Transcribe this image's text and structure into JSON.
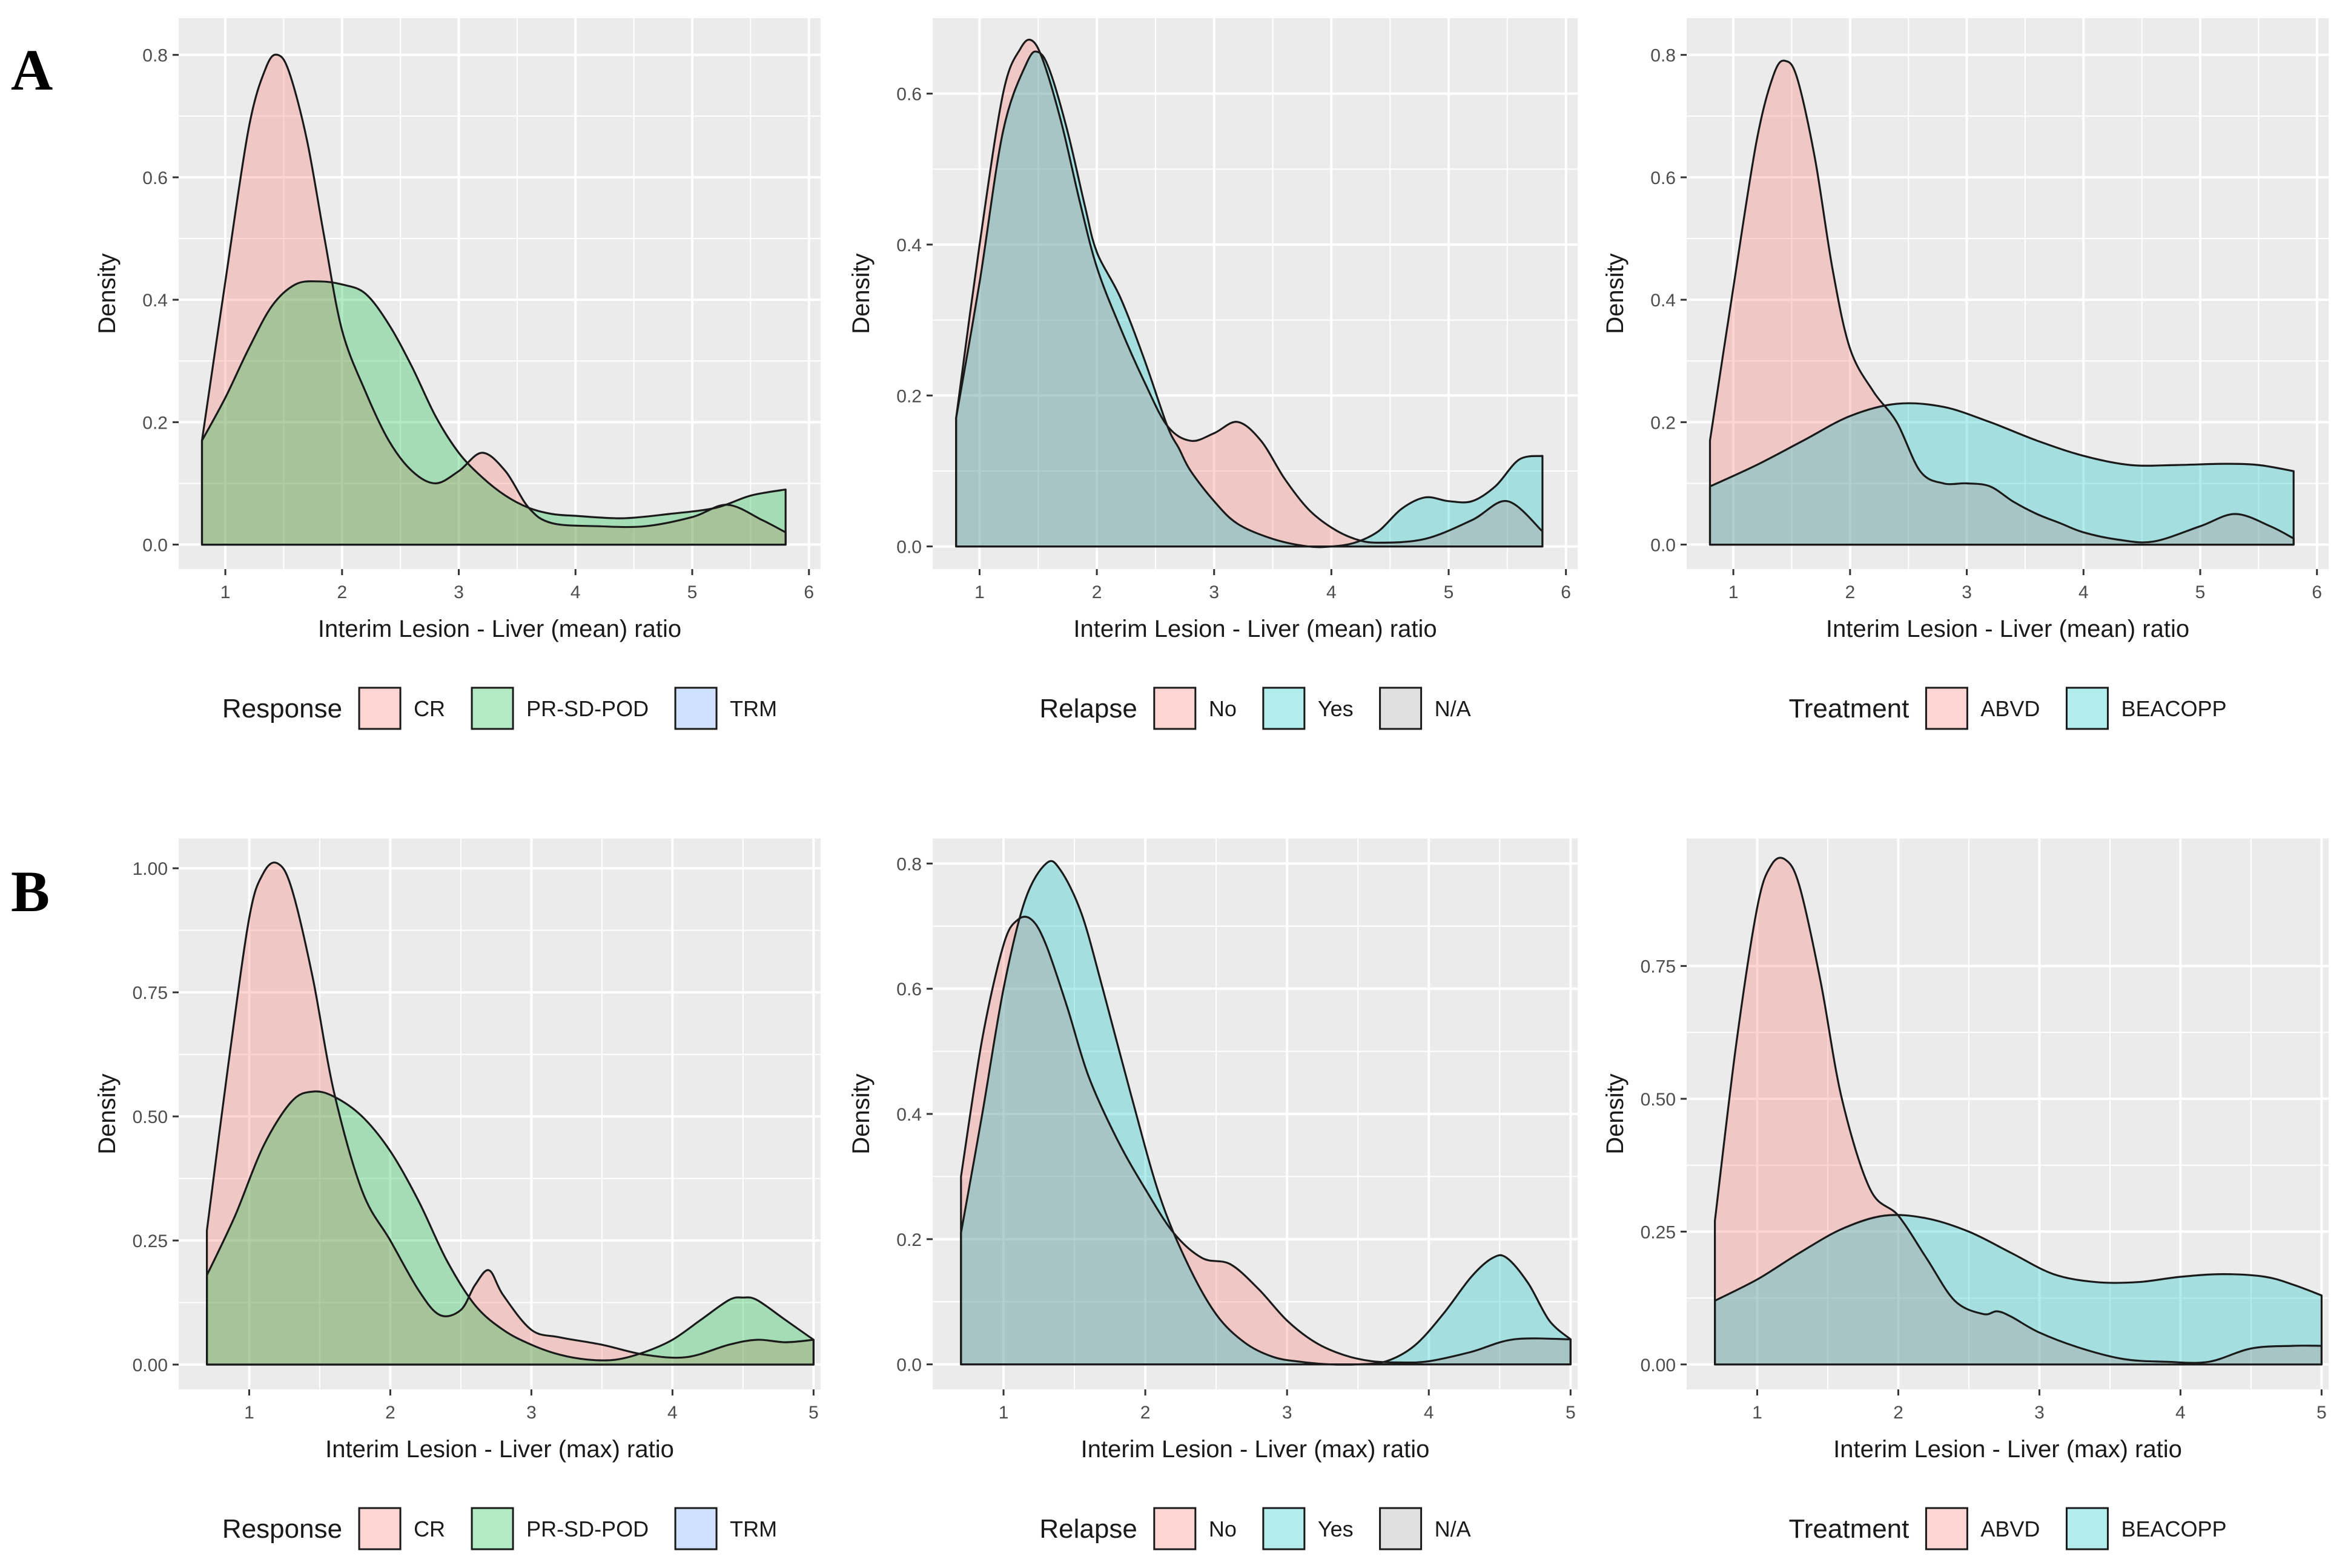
{
  "panel_labels": [
    "A",
    "B"
  ],
  "chart_data": [
    {
      "id": "A-response",
      "row": 0,
      "col": 0,
      "type": "area",
      "xlabel": "Interim Lesion - Liver (mean) ratio",
      "ylabel": "Density",
      "xlim": [
        0.6,
        6.1
      ],
      "ylim": [
        -0.04,
        0.86
      ],
      "xticks": [
        1,
        2,
        3,
        4,
        5,
        6
      ],
      "xtick_labels": [
        "1",
        "2",
        "3",
        "4",
        "5",
        "6"
      ],
      "yticks": [
        0.0,
        0.2,
        0.4,
        0.6,
        0.8
      ],
      "ytick_labels": [
        "0.0",
        "0.2",
        "0.4",
        "0.6",
        "0.8"
      ],
      "legend": {
        "title": "Response",
        "entries": [
          {
            "label": "CR",
            "color": "#F8766D"
          },
          {
            "label": "PR-SD-POD",
            "color": "#00BA38"
          },
          {
            "label": "TRM",
            "color": "#619CFF"
          }
        ]
      },
      "series": [
        {
          "name": "CR",
          "color": "#F8766D",
          "x": [
            0.8,
            1.0,
            1.2,
            1.35,
            1.45,
            1.55,
            1.7,
            1.85,
            2.0,
            2.2,
            2.4,
            2.6,
            2.8,
            3.0,
            3.2,
            3.4,
            3.6,
            3.8,
            4.2,
            4.6,
            5.0,
            5.3,
            5.6,
            5.8
          ],
          "y": [
            0.17,
            0.43,
            0.68,
            0.78,
            0.8,
            0.77,
            0.66,
            0.5,
            0.35,
            0.25,
            0.17,
            0.12,
            0.1,
            0.12,
            0.15,
            0.12,
            0.06,
            0.035,
            0.03,
            0.03,
            0.045,
            0.065,
            0.04,
            0.02
          ]
        },
        {
          "name": "PR-SD-POD",
          "color": "#00BA38",
          "x": [
            0.8,
            1.0,
            1.2,
            1.4,
            1.6,
            1.8,
            2.0,
            2.2,
            2.4,
            2.6,
            2.8,
            3.0,
            3.2,
            3.4,
            3.6,
            3.8,
            4.0,
            4.4,
            4.8,
            5.2,
            5.5,
            5.8
          ],
          "y": [
            0.17,
            0.24,
            0.32,
            0.39,
            0.425,
            0.43,
            0.425,
            0.41,
            0.36,
            0.29,
            0.21,
            0.15,
            0.11,
            0.08,
            0.06,
            0.05,
            0.047,
            0.043,
            0.05,
            0.06,
            0.08,
            0.09
          ]
        }
      ]
    },
    {
      "id": "A-relapse",
      "row": 0,
      "col": 1,
      "type": "area",
      "xlabel": "Interim Lesion - Liver (mean) ratio",
      "ylabel": "Density",
      "xlim": [
        0.6,
        6.1
      ],
      "ylim": [
        -0.03,
        0.7
      ],
      "xticks": [
        1,
        2,
        3,
        4,
        5,
        6
      ],
      "xtick_labels": [
        "1",
        "2",
        "3",
        "4",
        "5",
        "6"
      ],
      "yticks": [
        0.0,
        0.2,
        0.4,
        0.6
      ],
      "ytick_labels": [
        "0.0",
        "0.2",
        "0.4",
        "0.6"
      ],
      "legend": {
        "title": "Relapse",
        "entries": [
          {
            "label": "No",
            "color": "#F8766D"
          },
          {
            "label": "Yes",
            "color": "#00BFC4"
          },
          {
            "label": "N/A",
            "color": "#999999"
          }
        ]
      },
      "series": [
        {
          "name": "No",
          "color": "#F8766D",
          "x": [
            0.8,
            1.0,
            1.2,
            1.35,
            1.45,
            1.55,
            1.7,
            1.85,
            2.0,
            2.2,
            2.4,
            2.6,
            2.8,
            3.0,
            3.2,
            3.4,
            3.6,
            3.8,
            4.0,
            4.2,
            4.4,
            4.8,
            5.2,
            5.5,
            5.8
          ],
          "y": [
            0.17,
            0.4,
            0.6,
            0.66,
            0.67,
            0.64,
            0.56,
            0.46,
            0.37,
            0.29,
            0.22,
            0.16,
            0.14,
            0.15,
            0.165,
            0.14,
            0.09,
            0.05,
            0.025,
            0.01,
            0.005,
            0.01,
            0.035,
            0.06,
            0.02
          ]
        },
        {
          "name": "Yes",
          "color": "#00BFC4",
          "x": [
            0.8,
            1.0,
            1.2,
            1.4,
            1.5,
            1.6,
            1.75,
            1.9,
            2.0,
            2.2,
            2.4,
            2.6,
            2.7,
            2.8,
            3.0,
            3.2,
            3.5,
            3.8,
            4.0,
            4.2,
            4.4,
            4.6,
            4.8,
            5.0,
            5.2,
            5.4,
            5.6,
            5.8
          ],
          "y": [
            0.17,
            0.35,
            0.55,
            0.64,
            0.655,
            0.63,
            0.55,
            0.45,
            0.39,
            0.33,
            0.25,
            0.16,
            0.13,
            0.1,
            0.06,
            0.03,
            0.01,
            0.0,
            0.0,
            0.005,
            0.02,
            0.05,
            0.065,
            0.06,
            0.06,
            0.08,
            0.115,
            0.12
          ]
        }
      ]
    },
    {
      "id": "A-treatment",
      "row": 0,
      "col": 2,
      "type": "area",
      "xlabel": "Interim Lesion - Liver (mean) ratio",
      "ylabel": "Density",
      "xlim": [
        0.6,
        6.1
      ],
      "ylim": [
        -0.04,
        0.86
      ],
      "xticks": [
        1,
        2,
        3,
        4,
        5,
        6
      ],
      "xtick_labels": [
        "1",
        "2",
        "3",
        "4",
        "5",
        "6"
      ],
      "yticks": [
        0.0,
        0.2,
        0.4,
        0.6,
        0.8
      ],
      "ytick_labels": [
        "0.0",
        "0.2",
        "0.4",
        "0.6",
        "0.8"
      ],
      "legend": {
        "title": "Treatment",
        "entries": [
          {
            "label": "ABVD",
            "color": "#F8766D"
          },
          {
            "label": "BEACOPP",
            "color": "#00BFC4"
          }
        ]
      },
      "series": [
        {
          "name": "ABVD",
          "color": "#F8766D",
          "x": [
            0.8,
            1.0,
            1.2,
            1.35,
            1.45,
            1.55,
            1.7,
            1.85,
            2.0,
            2.2,
            2.4,
            2.6,
            2.8,
            3.0,
            3.2,
            3.4,
            3.6,
            3.8,
            4.0,
            4.3,
            4.6,
            5.0,
            5.3,
            5.6,
            5.8
          ],
          "y": [
            0.17,
            0.42,
            0.66,
            0.77,
            0.79,
            0.76,
            0.63,
            0.45,
            0.32,
            0.25,
            0.2,
            0.12,
            0.1,
            0.1,
            0.095,
            0.07,
            0.05,
            0.035,
            0.02,
            0.008,
            0.005,
            0.03,
            0.05,
            0.03,
            0.01
          ]
        },
        {
          "name": "BEACOPP",
          "color": "#00BFC4",
          "x": [
            0.8,
            1.2,
            1.6,
            2.0,
            2.4,
            2.8,
            3.2,
            3.6,
            4.0,
            4.4,
            4.8,
            5.2,
            5.5,
            5.8
          ],
          "y": [
            0.095,
            0.13,
            0.17,
            0.21,
            0.23,
            0.225,
            0.2,
            0.17,
            0.145,
            0.13,
            0.13,
            0.132,
            0.13,
            0.12
          ]
        }
      ]
    },
    {
      "id": "B-response",
      "row": 1,
      "col": 0,
      "type": "area",
      "xlabel": "Interim Lesion - Liver (max) ratio",
      "ylabel": "Density",
      "xlim": [
        0.5,
        5.05
      ],
      "ylim": [
        -0.05,
        1.06
      ],
      "xticks": [
        1,
        2,
        3,
        4,
        5
      ],
      "xtick_labels": [
        "1",
        "2",
        "3",
        "4",
        "5"
      ],
      "yticks": [
        0.0,
        0.25,
        0.5,
        0.75,
        1.0
      ],
      "ytick_labels": [
        "0.00",
        "0.25",
        "0.50",
        "0.75",
        "1.00"
      ],
      "legend": {
        "title": "Response",
        "entries": [
          {
            "label": "CR",
            "color": "#F8766D"
          },
          {
            "label": "PR-SD-POD",
            "color": "#00BA38"
          },
          {
            "label": "TRM",
            "color": "#619CFF"
          }
        ]
      },
      "series": [
        {
          "name": "CR",
          "color": "#F8766D",
          "x": [
            0.7,
            0.85,
            1.0,
            1.1,
            1.2,
            1.3,
            1.45,
            1.6,
            1.8,
            2.0,
            2.2,
            2.35,
            2.5,
            2.6,
            2.7,
            2.8,
            3.0,
            3.2,
            3.5,
            3.8,
            4.1,
            4.4,
            4.6,
            4.8,
            5.0
          ],
          "y": [
            0.27,
            0.6,
            0.9,
            0.99,
            1.01,
            0.96,
            0.78,
            0.55,
            0.35,
            0.25,
            0.15,
            0.1,
            0.11,
            0.16,
            0.19,
            0.14,
            0.07,
            0.055,
            0.04,
            0.02,
            0.015,
            0.04,
            0.05,
            0.045,
            0.05
          ]
        },
        {
          "name": "PR-SD-POD",
          "color": "#00BA38",
          "x": [
            0.7,
            0.9,
            1.1,
            1.3,
            1.45,
            1.6,
            1.8,
            2.0,
            2.2,
            2.4,
            2.6,
            2.8,
            3.0,
            3.2,
            3.4,
            3.6,
            3.8,
            4.0,
            4.2,
            4.4,
            4.5,
            4.6,
            4.8,
            5.0
          ],
          "y": [
            0.18,
            0.3,
            0.44,
            0.53,
            0.55,
            0.54,
            0.5,
            0.43,
            0.33,
            0.21,
            0.12,
            0.07,
            0.04,
            0.02,
            0.01,
            0.01,
            0.025,
            0.05,
            0.09,
            0.13,
            0.135,
            0.13,
            0.09,
            0.05
          ]
        }
      ]
    },
    {
      "id": "B-relapse",
      "row": 1,
      "col": 1,
      "type": "area",
      "xlabel": "Interim Lesion - Liver (max) ratio",
      "ylabel": "Density",
      "xlim": [
        0.5,
        5.05
      ],
      "ylim": [
        -0.04,
        0.84
      ],
      "xticks": [
        1,
        2,
        3,
        4,
        5
      ],
      "xtick_labels": [
        "1",
        "2",
        "3",
        "4",
        "5"
      ],
      "yticks": [
        0.0,
        0.2,
        0.4,
        0.6,
        0.8
      ],
      "ytick_labels": [
        "0.0",
        "0.2",
        "0.4",
        "0.6",
        "0.8"
      ],
      "legend": {
        "title": "Relapse",
        "entries": [
          {
            "label": "No",
            "color": "#F8766D"
          },
          {
            "label": "Yes",
            "color": "#00BFC4"
          },
          {
            "label": "N/A",
            "color": "#999999"
          }
        ]
      },
      "series": [
        {
          "name": "No",
          "color": "#F8766D",
          "x": [
            0.7,
            0.85,
            1.0,
            1.1,
            1.2,
            1.3,
            1.45,
            1.6,
            1.8,
            2.0,
            2.2,
            2.4,
            2.6,
            2.8,
            3.0,
            3.2,
            3.4,
            3.6,
            3.8,
            4.0,
            4.3,
            4.6,
            5.0
          ],
          "y": [
            0.3,
            0.52,
            0.67,
            0.71,
            0.71,
            0.67,
            0.57,
            0.46,
            0.36,
            0.28,
            0.21,
            0.17,
            0.16,
            0.12,
            0.07,
            0.035,
            0.015,
            0.005,
            0.003,
            0.005,
            0.02,
            0.04,
            0.04
          ]
        },
        {
          "name": "Yes",
          "color": "#00BFC4",
          "x": [
            0.7,
            0.85,
            1.0,
            1.15,
            1.3,
            1.4,
            1.55,
            1.7,
            1.9,
            2.1,
            2.3,
            2.5,
            2.7,
            2.9,
            3.1,
            3.3,
            3.5,
            3.7,
            3.9,
            4.1,
            4.3,
            4.45,
            4.55,
            4.7,
            4.85,
            5.0
          ],
          "y": [
            0.21,
            0.4,
            0.6,
            0.74,
            0.8,
            0.79,
            0.72,
            0.6,
            0.43,
            0.27,
            0.16,
            0.08,
            0.035,
            0.012,
            0.004,
            0.0,
            0.0,
            0.005,
            0.03,
            0.08,
            0.14,
            0.17,
            0.17,
            0.13,
            0.07,
            0.04
          ]
        }
      ]
    },
    {
      "id": "B-treatment",
      "row": 1,
      "col": 2,
      "type": "area",
      "xlabel": "Interim Lesion - Liver (max) ratio",
      "ylabel": "Density",
      "xlim": [
        0.5,
        5.05
      ],
      "ylim": [
        -0.047,
        0.99
      ],
      "xticks": [
        1,
        2,
        3,
        4,
        5
      ],
      "xtick_labels": [
        "1",
        "2",
        "3",
        "4",
        "5"
      ],
      "yticks": [
        0.0,
        0.25,
        0.5,
        0.75
      ],
      "ytick_labels": [
        "0.00",
        "0.25",
        "0.50",
        "0.75"
      ],
      "legend": {
        "title": "Treatment",
        "entries": [
          {
            "label": "ABVD",
            "color": "#F8766D"
          },
          {
            "label": "BEACOPP",
            "color": "#00BFC4"
          }
        ]
      },
      "series": [
        {
          "name": "ABVD",
          "color": "#F8766D",
          "x": [
            0.7,
            0.85,
            1.0,
            1.1,
            1.2,
            1.3,
            1.45,
            1.6,
            1.8,
            2.0,
            2.2,
            2.4,
            2.6,
            2.7,
            2.8,
            3.0,
            3.3,
            3.6,
            3.9,
            4.2,
            4.5,
            4.8,
            5.0
          ],
          "y": [
            0.27,
            0.6,
            0.86,
            0.94,
            0.95,
            0.9,
            0.72,
            0.5,
            0.33,
            0.28,
            0.2,
            0.12,
            0.095,
            0.1,
            0.09,
            0.06,
            0.03,
            0.01,
            0.005,
            0.005,
            0.03,
            0.035,
            0.035
          ]
        },
        {
          "name": "BEACOPP",
          "color": "#00BFC4",
          "x": [
            0.7,
            1.0,
            1.3,
            1.6,
            1.9,
            2.2,
            2.5,
            2.8,
            3.1,
            3.4,
            3.7,
            4.0,
            4.3,
            4.6,
            4.8,
            5.0
          ],
          "y": [
            0.12,
            0.16,
            0.21,
            0.255,
            0.28,
            0.275,
            0.25,
            0.21,
            0.17,
            0.155,
            0.155,
            0.165,
            0.17,
            0.165,
            0.15,
            0.13
          ]
        }
      ]
    }
  ]
}
